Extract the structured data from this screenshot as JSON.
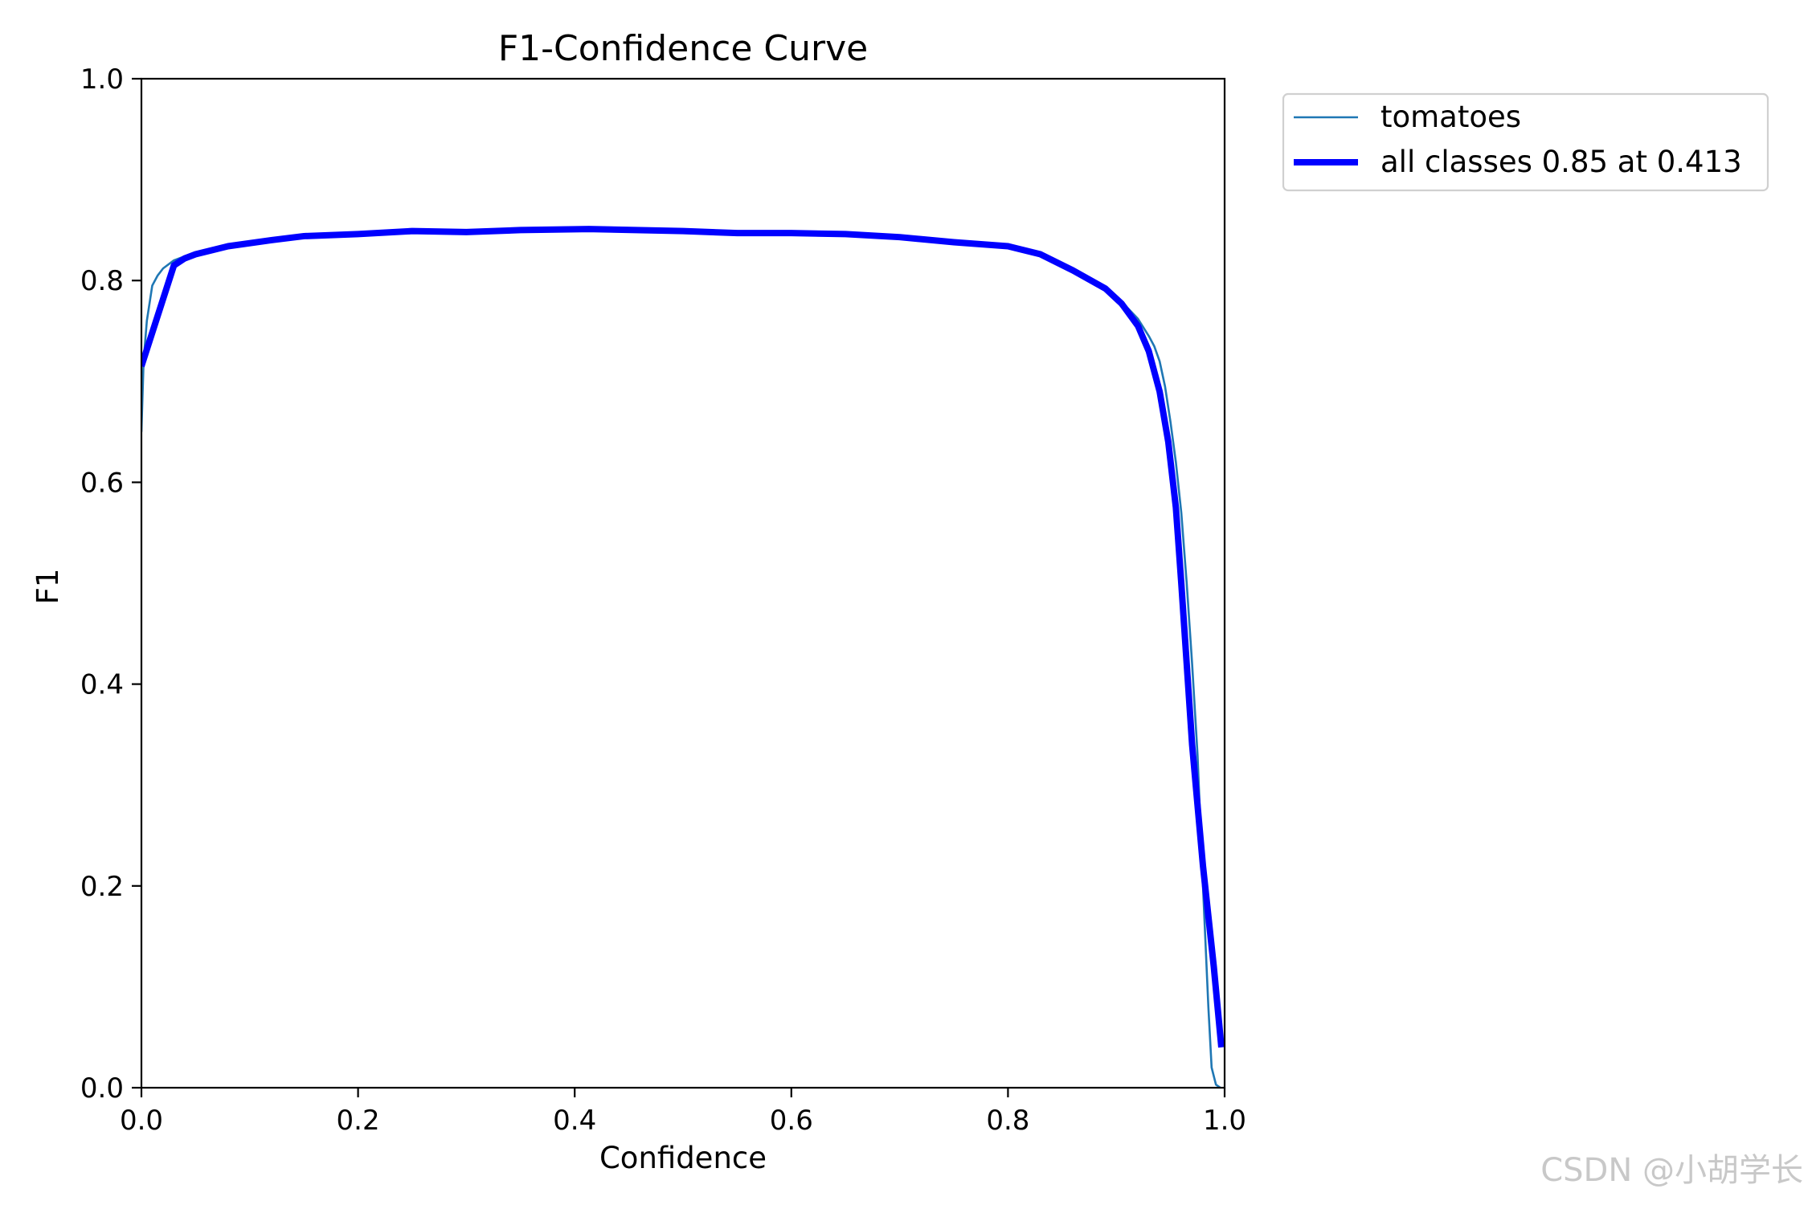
{
  "chart_data": {
    "type": "line",
    "title": "F1-Confidence Curve",
    "xlabel": "Confidence",
    "ylabel": "F1",
    "xlim": [
      0.0,
      1.0
    ],
    "ylim": [
      0.0,
      1.0
    ],
    "xticks": [
      "0.0",
      "0.2",
      "0.4",
      "0.6",
      "0.8",
      "1.0"
    ],
    "yticks": [
      "0.0",
      "0.2",
      "0.4",
      "0.6",
      "0.8",
      "1.0"
    ],
    "grid": false,
    "legend_position": "outside-top-right",
    "series": [
      {
        "name": "tomatoes",
        "color": "#1f77b4",
        "linewidth": "thin",
        "points": [
          [
            0.0,
            0.65
          ],
          [
            0.002,
            0.72
          ],
          [
            0.005,
            0.76
          ],
          [
            0.01,
            0.795
          ],
          [
            0.015,
            0.805
          ],
          [
            0.02,
            0.812
          ],
          [
            0.03,
            0.82
          ],
          [
            0.05,
            0.828
          ],
          [
            0.08,
            0.834
          ],
          [
            0.12,
            0.84
          ],
          [
            0.15,
            0.844
          ],
          [
            0.2,
            0.846
          ],
          [
            0.25,
            0.849
          ],
          [
            0.3,
            0.848
          ],
          [
            0.35,
            0.85
          ],
          [
            0.413,
            0.851
          ],
          [
            0.5,
            0.849
          ],
          [
            0.55,
            0.847
          ],
          [
            0.6,
            0.847
          ],
          [
            0.65,
            0.846
          ],
          [
            0.7,
            0.843
          ],
          [
            0.75,
            0.838
          ],
          [
            0.8,
            0.834
          ],
          [
            0.83,
            0.826
          ],
          [
            0.86,
            0.81
          ],
          [
            0.89,
            0.792
          ],
          [
            0.905,
            0.779
          ],
          [
            0.92,
            0.762
          ],
          [
            0.93,
            0.745
          ],
          [
            0.935,
            0.735
          ],
          [
            0.94,
            0.72
          ],
          [
            0.945,
            0.695
          ],
          [
            0.95,
            0.66
          ],
          [
            0.955,
            0.62
          ],
          [
            0.96,
            0.57
          ],
          [
            0.965,
            0.5
          ],
          [
            0.97,
            0.42
          ],
          [
            0.975,
            0.33
          ],
          [
            0.98,
            0.2
          ],
          [
            0.985,
            0.08
          ],
          [
            0.988,
            0.02
          ],
          [
            0.992,
            0.003
          ],
          [
            0.996,
            0.0
          ]
        ]
      },
      {
        "name": "all classes 0.85 at 0.413",
        "color": "#0000ff",
        "linewidth": "thick",
        "points": [
          [
            0.0,
            0.715
          ],
          [
            0.015,
            0.765
          ],
          [
            0.03,
            0.815
          ],
          [
            0.04,
            0.822
          ],
          [
            0.05,
            0.826
          ],
          [
            0.08,
            0.834
          ],
          [
            0.12,
            0.84
          ],
          [
            0.15,
            0.844
          ],
          [
            0.2,
            0.846
          ],
          [
            0.25,
            0.849
          ],
          [
            0.3,
            0.848
          ],
          [
            0.35,
            0.85
          ],
          [
            0.413,
            0.851
          ],
          [
            0.5,
            0.849
          ],
          [
            0.55,
            0.847
          ],
          [
            0.6,
            0.847
          ],
          [
            0.65,
            0.846
          ],
          [
            0.7,
            0.843
          ],
          [
            0.75,
            0.838
          ],
          [
            0.8,
            0.834
          ],
          [
            0.83,
            0.826
          ],
          [
            0.86,
            0.81
          ],
          [
            0.89,
            0.792
          ],
          [
            0.905,
            0.777
          ],
          [
            0.92,
            0.755
          ],
          [
            0.93,
            0.73
          ],
          [
            0.94,
            0.69
          ],
          [
            0.948,
            0.64
          ],
          [
            0.955,
            0.575
          ],
          [
            0.96,
            0.5
          ],
          [
            0.965,
            0.42
          ],
          [
            0.97,
            0.34
          ],
          [
            0.98,
            0.22
          ],
          [
            0.99,
            0.12
          ],
          [
            0.997,
            0.04
          ]
        ]
      }
    ]
  },
  "watermark": "CSDN @小胡学长"
}
